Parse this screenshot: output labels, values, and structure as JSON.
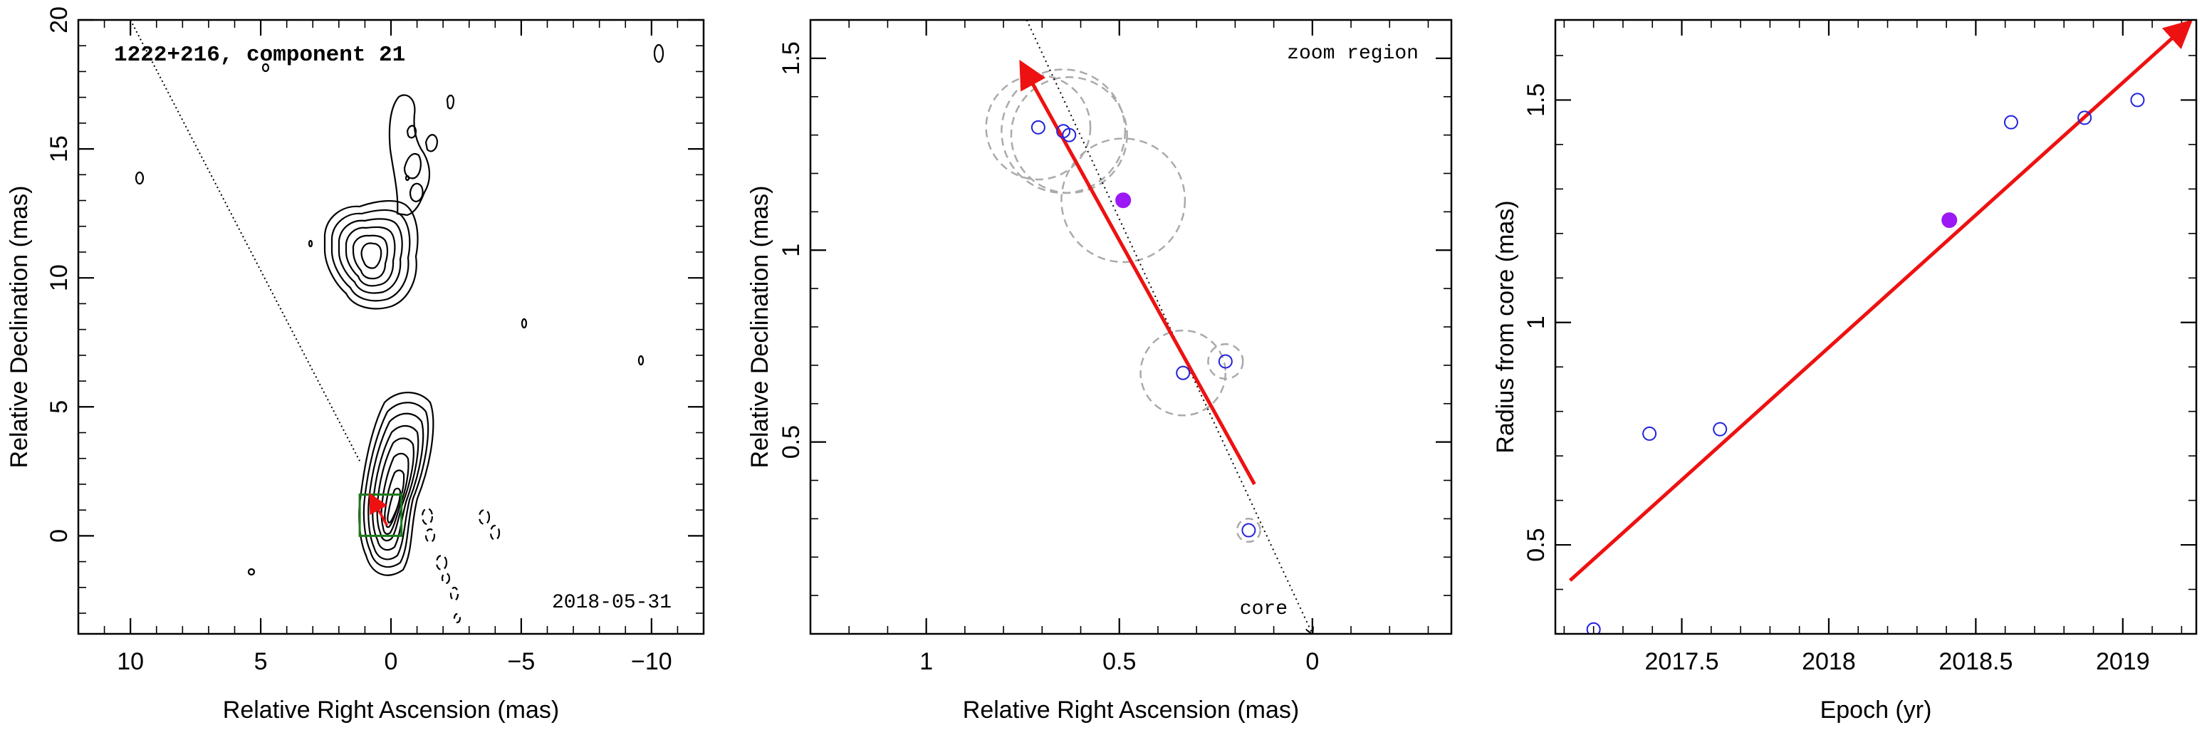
{
  "chart_data": [
    {
      "type": "contour",
      "title": "1222+216, component 21",
      "xlabel": "Relative Right Ascension (mas)",
      "ylabel": "Relative Declination (mas)",
      "xlim": [
        12,
        -12
      ],
      "ylim": [
        -3.8,
        20
      ],
      "xticks": [
        10,
        5,
        0,
        -5,
        -10
      ],
      "xtick_labels": [
        "10",
        "5",
        "0",
        "−5",
        "−10"
      ],
      "yticks": [
        0,
        5,
        10,
        15,
        20
      ],
      "ytick_labels": [
        "0",
        "5",
        "10",
        "15",
        "20"
      ],
      "date_label": "2018-05-31",
      "zoom_box": {
        "x": [
          1.2,
          -0.4
        ],
        "y": [
          0,
          1.6
        ]
      },
      "jet_direction_line": {
        "x": [
          10,
          1.2
        ],
        "y": [
          20,
          2.9
        ]
      },
      "motion_vector": {
        "from": [
          0.15,
          0.4
        ],
        "to": [
          0.75,
          1.5
        ]
      },
      "colors": {
        "contour": "#000000",
        "box": "#1a7a1a",
        "vector": "#ee1111",
        "line": "#000000"
      }
    },
    {
      "type": "scatter",
      "xlabel": "Relative Right Ascension (mas)",
      "ylabel": "Relative Declination (mas)",
      "xlim": [
        1.3,
        -0.36
      ],
      "ylim": [
        0,
        1.6
      ],
      "xticks": [
        1,
        0.5,
        0
      ],
      "xtick_labels": [
        "1",
        "0.5",
        "0"
      ],
      "yticks": [
        0.5,
        1,
        1.5
      ],
      "ytick_labels": [
        "0.5",
        "1",
        "1.5"
      ],
      "annotations": {
        "zoom": "zoom region",
        "core": "core"
      },
      "points": [
        {
          "x": 0.71,
          "y": 1.32,
          "r": 0.135,
          "filled": false
        },
        {
          "x": 0.645,
          "y": 1.31,
          "r": 0.16,
          "filled": false
        },
        {
          "x": 0.63,
          "y": 1.3,
          "r": 0.15,
          "filled": false
        },
        {
          "x": 0.49,
          "y": 1.13,
          "r": 0.16,
          "filled": true
        },
        {
          "x": 0.335,
          "y": 0.68,
          "r": 0.11,
          "filled": false
        },
        {
          "x": 0.225,
          "y": 0.71,
          "r": 0.045,
          "filled": false
        },
        {
          "x": 0.165,
          "y": 0.27,
          "r": 0.03,
          "filled": false
        }
      ],
      "fit_vector": {
        "from": [
          0.15,
          0.39
        ],
        "to": [
          0.75,
          1.48
        ]
      },
      "pa_line": {
        "from": [
          0.74,
          1.6
        ],
        "to": [
          0.0,
          0.0
        ]
      },
      "colors": {
        "point": "#2222dd",
        "filled": "#9b19f5",
        "circle": "#aaaaaa",
        "vector": "#ee1111"
      }
    },
    {
      "type": "scatter",
      "xlabel": "Epoch (yr)",
      "ylabel": "Radius from core (mas)",
      "xlim": [
        2017.07,
        2019.25
      ],
      "ylim": [
        0.3,
        1.68
      ],
      "xticks": [
        2017.5,
        2018,
        2018.5,
        2019
      ],
      "xtick_labels": [
        "2017.5",
        "2018",
        "2018.5",
        "2019"
      ],
      "yticks": [
        0.5,
        1,
        1.5
      ],
      "ytick_labels": [
        "0.5",
        "1",
        "1.5"
      ],
      "points": [
        {
          "x": 2017.2,
          "y": 0.31,
          "filled": false
        },
        {
          "x": 2017.39,
          "y": 0.75,
          "filled": false
        },
        {
          "x": 2017.63,
          "y": 0.76,
          "filled": false
        },
        {
          "x": 2018.41,
          "y": 1.23,
          "filled": true
        },
        {
          "x": 2018.62,
          "y": 1.45,
          "filled": false
        },
        {
          "x": 2018.87,
          "y": 1.46,
          "filled": false
        },
        {
          "x": 2019.05,
          "y": 1.5,
          "filled": false
        }
      ],
      "fit_line": {
        "from": [
          2017.12,
          0.42
        ],
        "to": [
          2019.22,
          1.67
        ]
      },
      "colors": {
        "point": "#2222dd",
        "filled": "#9b19f5",
        "fit": "#ee1111"
      }
    }
  ]
}
